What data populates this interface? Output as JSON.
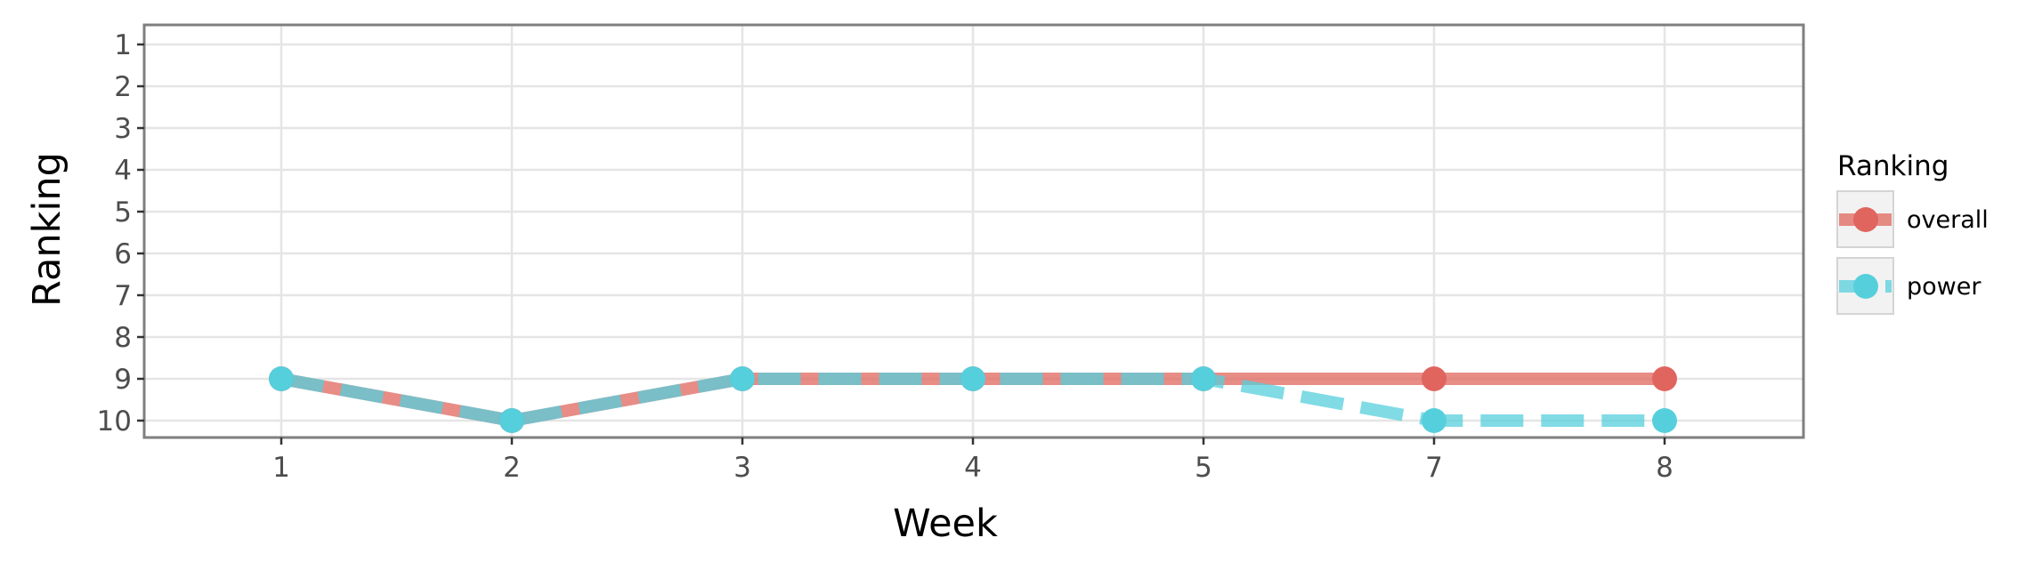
{
  "chart_data": {
    "type": "line",
    "title": "",
    "xlabel": "Week",
    "ylabel": "Ranking",
    "categories": [
      "1",
      "2",
      "3",
      "4",
      "5",
      "7",
      "8"
    ],
    "yticks": [
      "1",
      "2",
      "3",
      "4",
      "5",
      "6",
      "7",
      "8",
      "9",
      "10"
    ],
    "ylim": [
      10.5,
      0.5
    ],
    "y_reversed": true,
    "grid": true,
    "legend": {
      "title": "Ranking",
      "position": "right"
    },
    "series": [
      {
        "name": "overall",
        "color": "#e0655e",
        "line_style": "solid",
        "values": [
          9,
          10,
          9,
          9,
          9,
          9,
          9
        ]
      },
      {
        "name": "power",
        "color": "#56cfdc",
        "line_style": "dashed",
        "values": [
          9,
          10,
          9,
          9,
          9,
          10,
          10
        ]
      }
    ]
  }
}
